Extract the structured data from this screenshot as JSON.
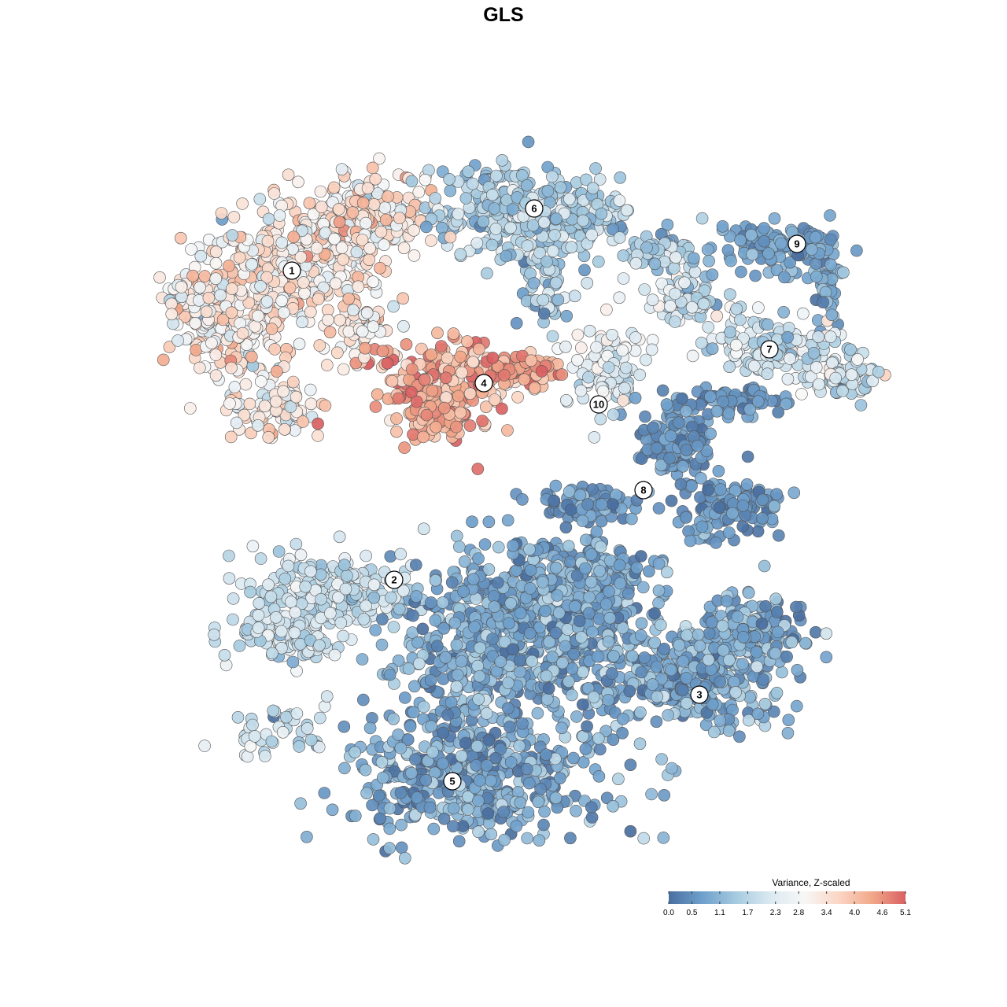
{
  "chart_data": {
    "type": "scatter",
    "title": "GLS",
    "xlabel": "",
    "ylabel": "",
    "grid": false,
    "legend_position": "bottom-right",
    "colorbar": {
      "title": "Variance, Z-scaled",
      "range": [
        0.0,
        5.1
      ],
      "tick_labels": [
        "0.0",
        "0.5",
        "1.1",
        "1.7",
        "2.3",
        "2.8",
        "3.4",
        "4.0",
        "4.6",
        "5.1"
      ],
      "tick_values": [
        0.0,
        0.5,
        1.1,
        1.7,
        2.3,
        2.8,
        3.4,
        4.0,
        4.6,
        5.1
      ],
      "colors": [
        "#4a6fa0",
        "#6fa0cc",
        "#a6cbe0",
        "#dbe9f1",
        "#f7f7f7",
        "#fbd7c6",
        "#f2a98b",
        "#d95f62"
      ]
    },
    "clusters": [
      {
        "label": "1",
        "mean_value": 3.2,
        "spread": 0.6
      },
      {
        "label": "2",
        "mean_value": 2.0,
        "spread": 0.4
      },
      {
        "label": "3",
        "mean_value": 0.9,
        "spread": 0.5
      },
      {
        "label": "4",
        "mean_value": 4.3,
        "spread": 0.5
      },
      {
        "label": "5",
        "mean_value": 0.9,
        "spread": 0.5
      },
      {
        "label": "6",
        "mean_value": 1.5,
        "spread": 0.5
      },
      {
        "label": "7",
        "mean_value": 2.0,
        "spread": 0.6
      },
      {
        "label": "8",
        "mean_value": 0.6,
        "spread": 0.3
      },
      {
        "label": "9",
        "mean_value": 0.8,
        "spread": 0.3
      },
      {
        "label": "10",
        "mean_value": 2.4,
        "spread": 0.4
      }
    ]
  }
}
